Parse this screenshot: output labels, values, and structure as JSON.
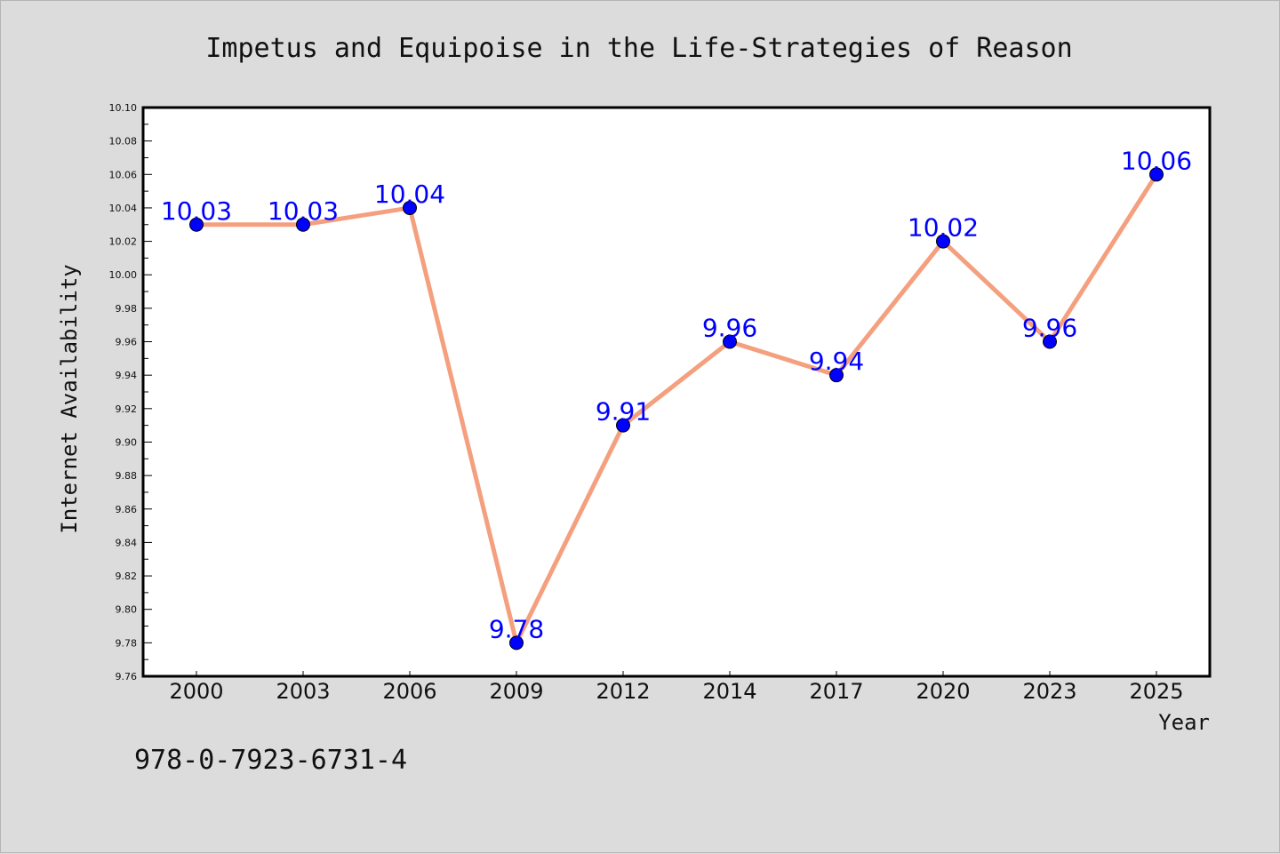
{
  "chart_data": {
    "type": "line",
    "title": "Impetus and Equipoise in the Life-Strategies of Reason",
    "xlabel": "Year",
    "ylabel": "Internet Availability",
    "categories": [
      "2000",
      "2003",
      "2006",
      "2009",
      "2012",
      "2014",
      "2017",
      "2020",
      "2023",
      "2025"
    ],
    "series": [
      {
        "values": [
          10.03,
          10.03,
          10.04,
          9.78,
          9.91,
          9.96,
          9.94,
          10.02,
          9.96,
          10.06
        ],
        "data_labels": [
          "10.03",
          "10.03",
          "10.04",
          "9.78",
          "9.91",
          "9.96",
          "9.94",
          "10.02",
          "9.96",
          "10.06"
        ]
      }
    ],
    "ylim": [
      9.76,
      10.1
    ],
    "yticks": [
      "9.76",
      "9.78",
      "9.80",
      "9.82",
      "9.84",
      "9.86",
      "9.88",
      "9.90",
      "9.92",
      "9.94",
      "9.96",
      "9.98",
      "10.00",
      "10.02",
      "10.04",
      "10.06",
      "10.08",
      "10.10"
    ],
    "grid": false,
    "legend": "none",
    "colors": {
      "line": "#f4a07f",
      "marker": "#0000ff",
      "data_label": "#0000ff",
      "plot_background": "#ffffff",
      "figure_background": "#dcdcdc"
    }
  },
  "footer": {
    "isbn": "978-0-7923-6731-4"
  }
}
